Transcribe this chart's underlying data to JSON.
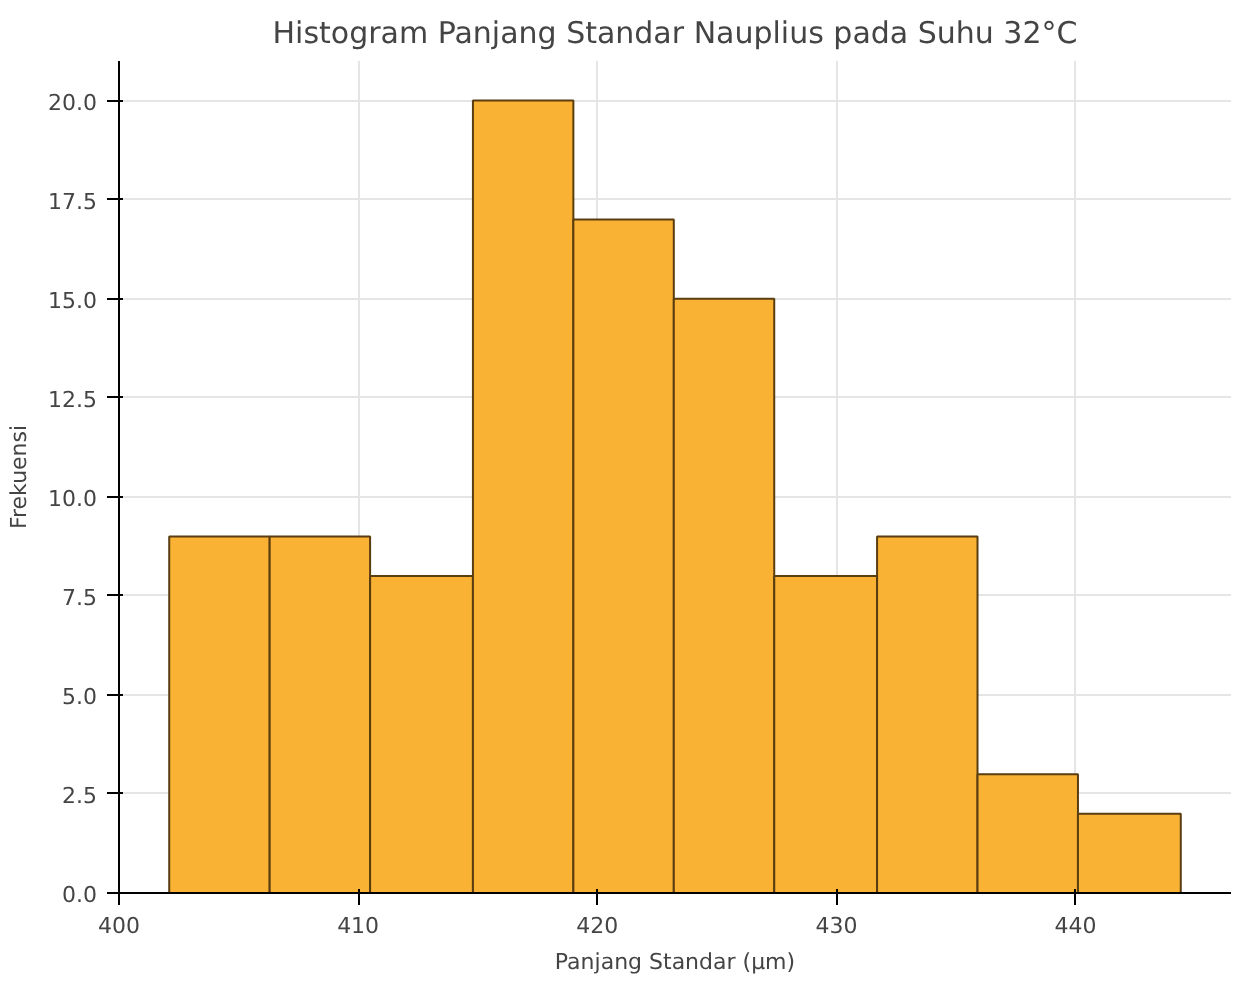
{
  "chart_data": {
    "type": "histogram",
    "title": "Histogram Panjang Standar Nauplius pada Suhu 32°C",
    "xlabel": "Panjang Standar (µm)",
    "ylabel": "Frekuensi",
    "bins": [
      402.1,
      406.3,
      410.5,
      414.8,
      419.0,
      423.2,
      427.4,
      431.7,
      435.9,
      440.1,
      444.4
    ],
    "values": [
      9,
      9,
      8,
      20,
      17,
      15,
      8,
      9,
      3,
      2
    ],
    "color": "#f9b233",
    "xlim": [
      400,
      446.5
    ],
    "ylim": [
      0,
      21
    ],
    "xticks": [
      400,
      410,
      420,
      430,
      440
    ],
    "yticks": [
      {
        "value": 0,
        "label": "0.0"
      },
      {
        "value": 2.5,
        "label": "2.5"
      },
      {
        "value": 5,
        "label": "5.0"
      },
      {
        "value": 7.5,
        "label": "7.5"
      },
      {
        "value": 10,
        "label": "10.0"
      },
      {
        "value": 12.5,
        "label": "12.5"
      },
      {
        "value": 15,
        "label": "15.0"
      },
      {
        "value": 17.5,
        "label": "17.5"
      },
      {
        "value": 20,
        "label": "20.0"
      }
    ],
    "grid": true
  }
}
